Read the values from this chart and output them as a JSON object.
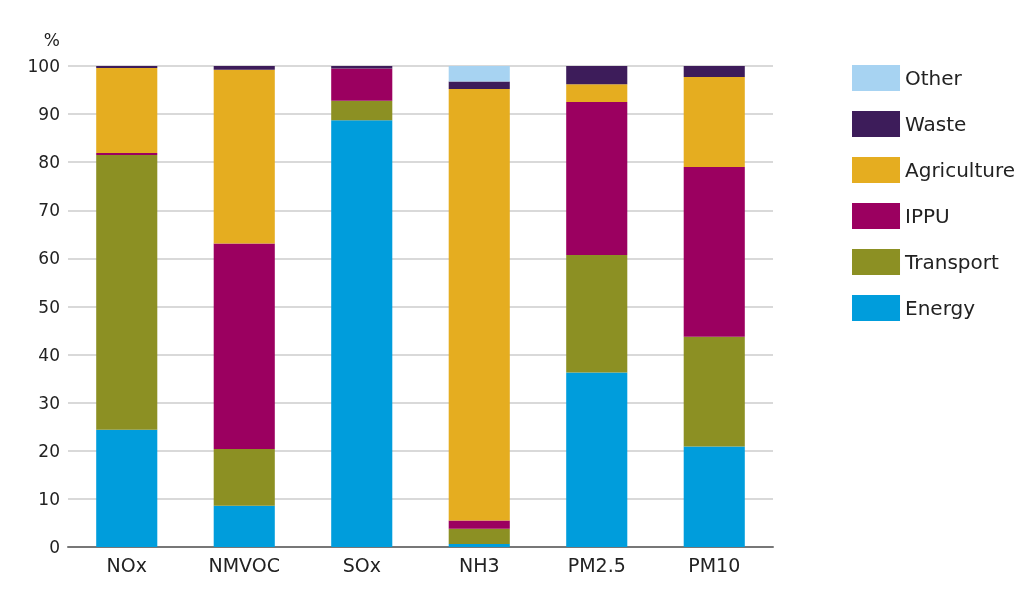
{
  "chart_data": {
    "type": "bar",
    "stacked": true,
    "ylabel": "%",
    "categories": [
      "NOx",
      "NMVOC",
      "SOx",
      "NH3",
      "PM2.5",
      "PM10"
    ],
    "series": [
      {
        "name": "Energy",
        "color": "#009ddc",
        "values": [
          24.4,
          8.6,
          88.7,
          0.6,
          36.3,
          20.9
        ]
      },
      {
        "name": "Transport",
        "color": "#8c9023",
        "values": [
          57.1,
          11.8,
          4.1,
          3.2,
          24.4,
          22.8
        ]
      },
      {
        "name": "IPPU",
        "color": "#9b0060",
        "values": [
          0.4,
          42.7,
          6.7,
          1.7,
          31.8,
          35.3
        ]
      },
      {
        "name": "Agriculture",
        "color": "#e5ad20",
        "values": [
          17.7,
          36.1,
          0,
          89.7,
          3.7,
          18.7
        ]
      },
      {
        "name": "Waste",
        "color": "#3d1c5a",
        "values": [
          0.4,
          0.8,
          0.5,
          1.6,
          3.8,
          2.3
        ]
      },
      {
        "name": "Other",
        "color": "#a7d3f2",
        "values": [
          0,
          0,
          0,
          3.2,
          0,
          0
        ]
      }
    ],
    "ylim": [
      0,
      100
    ],
    "yticks": [
      0,
      10,
      20,
      30,
      40,
      50,
      60,
      70,
      80,
      90,
      100
    ],
    "grid": "y",
    "legend": "right"
  }
}
